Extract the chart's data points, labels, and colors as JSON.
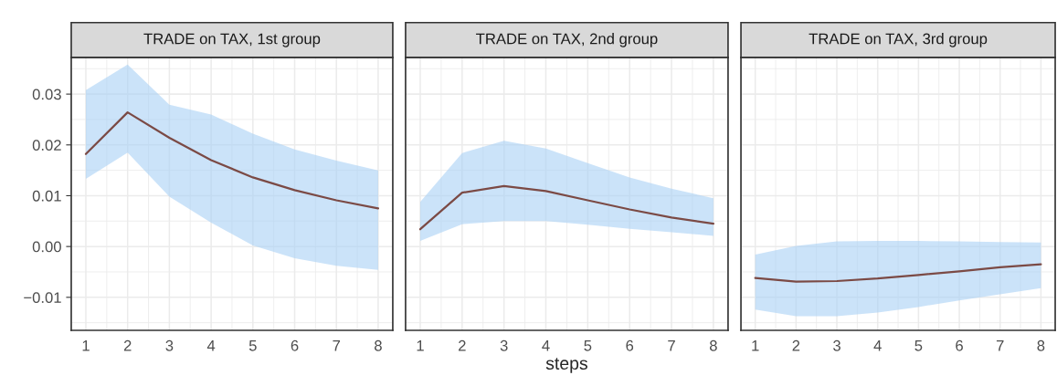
{
  "chart_data": [
    {
      "type": "line",
      "title": "TRADE on TAX, 1st group",
      "x": [
        1,
        2,
        3,
        4,
        5,
        6,
        7,
        8
      ],
      "xlim": [
        0.65,
        8.35
      ],
      "xticks": [
        1,
        2,
        3,
        4,
        5,
        6,
        7,
        8
      ],
      "ylim": [
        -0.0165,
        0.0372
      ],
      "yticks": [
        {
          "value": -0.01,
          "label": "−0.01"
        },
        {
          "value": 0,
          "label": "0.00"
        },
        {
          "value": 0.01,
          "label": "0.01"
        },
        {
          "value": 0.02,
          "label": "0.02"
        },
        {
          "value": 0.03,
          "label": "0.03"
        }
      ],
      "grid": true,
      "series": [
        {
          "color": "#7b4a45",
          "values": [
            0.0182,
            0.0264,
            0.0214,
            0.017,
            0.0136,
            0.0111,
            0.0091,
            0.0075
          ],
          "lower": [
            0.0133,
            0.0185,
            0.0098,
            0.0047,
            0.0002,
            -0.0023,
            -0.0038,
            -0.0046
          ],
          "upper": [
            0.0308,
            0.0358,
            0.0279,
            0.026,
            0.0222,
            0.0191,
            0.0169,
            0.015
          ]
        }
      ]
    },
    {
      "type": "line",
      "title": "TRADE on TAX, 2nd group",
      "xlabel": "steps",
      "tick_labels": "x",
      "x": [
        1,
        2,
        3,
        4,
        5,
        6,
        7,
        8
      ],
      "xlim": [
        0.65,
        8.35
      ],
      "xticks": [
        1,
        2,
        3,
        4,
        5,
        6,
        7,
        8
      ],
      "ylim": [
        -0.0165,
        0.0372
      ],
      "yticks": [
        -0.01,
        0,
        0.01,
        0.02,
        0.03
      ],
      "grid": true,
      "series": [
        {
          "color": "#7b4a45",
          "values": [
            0.0034,
            0.0106,
            0.0119,
            0.0109,
            0.0091,
            0.0073,
            0.0057,
            0.0045
          ],
          "lower": [
            0.0011,
            0.0044,
            0.005,
            0.005,
            0.0043,
            0.0035,
            0.0028,
            0.0021
          ],
          "upper": [
            0.0088,
            0.0184,
            0.0208,
            0.0193,
            0.0164,
            0.0136,
            0.0114,
            0.0095
          ]
        }
      ]
    },
    {
      "type": "line",
      "title": "TRADE on TAX, 3rd group",
      "tick_labels": "x",
      "x": [
        1,
        2,
        3,
        4,
        5,
        6,
        7,
        8
      ],
      "xlim": [
        0.65,
        8.35
      ],
      "xticks": [
        1,
        2,
        3,
        4,
        5,
        6,
        7,
        8
      ],
      "ylim": [
        -0.0165,
        0.0372
      ],
      "yticks": [
        -0.01,
        0,
        0.01,
        0.02,
        0.03
      ],
      "grid": true,
      "series": [
        {
          "color": "#7b4a45",
          "values": [
            -0.0062,
            -0.0069,
            -0.0068,
            -0.0063,
            -0.0056,
            -0.0049,
            -0.0041,
            -0.0035
          ],
          "lower": [
            -0.0124,
            -0.0137,
            -0.0137,
            -0.013,
            -0.0119,
            -0.0106,
            -0.0094,
            -0.0082
          ],
          "upper": [
            -0.0016,
            0.0001,
            0.001,
            0.0011,
            0.0011,
            0.001,
            0.0009,
            0.0008
          ]
        }
      ]
    }
  ]
}
